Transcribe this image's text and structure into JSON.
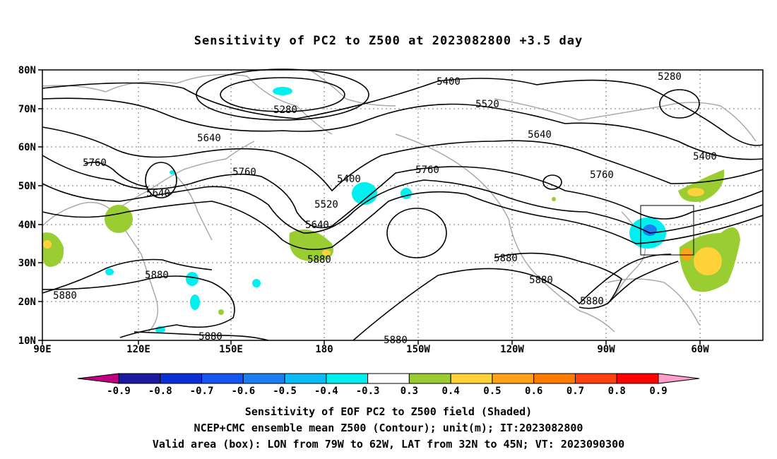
{
  "title": "Sensitivity of PC2 to Z500 at 2023082800 +3.5 day",
  "map": {
    "lat_labels": [
      "80N",
      "70N",
      "60N",
      "50N",
      "40N",
      "30N",
      "20N",
      "10N"
    ],
    "lon_labels": [
      "90E",
      "120E",
      "150E",
      "180",
      "150W",
      "120W",
      "90W",
      "60W"
    ],
    "contour_labels": [
      {
        "text": "5280"
      },
      {
        "text": "5400"
      },
      {
        "text": "5520"
      },
      {
        "text": "5280"
      },
      {
        "text": "5640"
      },
      {
        "text": "5760"
      },
      {
        "text": "5640"
      },
      {
        "text": "5760"
      },
      {
        "text": "5400"
      },
      {
        "text": "5520"
      },
      {
        "text": "5640"
      },
      {
        "text": "5760"
      },
      {
        "text": "5640"
      },
      {
        "text": "5760"
      },
      {
        "text": "5400"
      },
      {
        "text": "5880"
      },
      {
        "text": "5880"
      },
      {
        "text": "5880"
      },
      {
        "text": "5880"
      },
      {
        "text": "5880"
      },
      {
        "text": "5880"
      },
      {
        "text": "5880"
      },
      {
        "text": "5880"
      }
    ],
    "valid_box": {
      "lon_from": "79W",
      "lon_to": "62W",
      "lat_from": "32N",
      "lat_to": "45N"
    }
  },
  "colorbar": {
    "levels": [
      "-0.9",
      "-0.8",
      "-0.7",
      "-0.6",
      "-0.5",
      "-0.4",
      "-0.3",
      "0.3",
      "0.4",
      "0.5",
      "0.6",
      "0.7",
      "0.8",
      "0.9"
    ],
    "colors": [
      "#c0007e",
      "#1a1a9e",
      "#0a2fd6",
      "#1656f0",
      "#1b7ef2",
      "#0bbcf5",
      "#00f0f0",
      "#ffffff",
      "#9acd32",
      "#ffd23a",
      "#ffa21a",
      "#ff7a00",
      "#ff4010",
      "#ff0000",
      "#ff9ec8"
    ]
  },
  "captions": [
    "Sensitivity of EOF PC2 to Z500 field (Shaded)",
    "NCEP+CMC ensemble mean Z500 (Contour); unit(m); IT:2023082800",
    "Valid area (box): LON from 79W to 62W, LAT from 32N to 45N; VT: 2023090300"
  ]
}
